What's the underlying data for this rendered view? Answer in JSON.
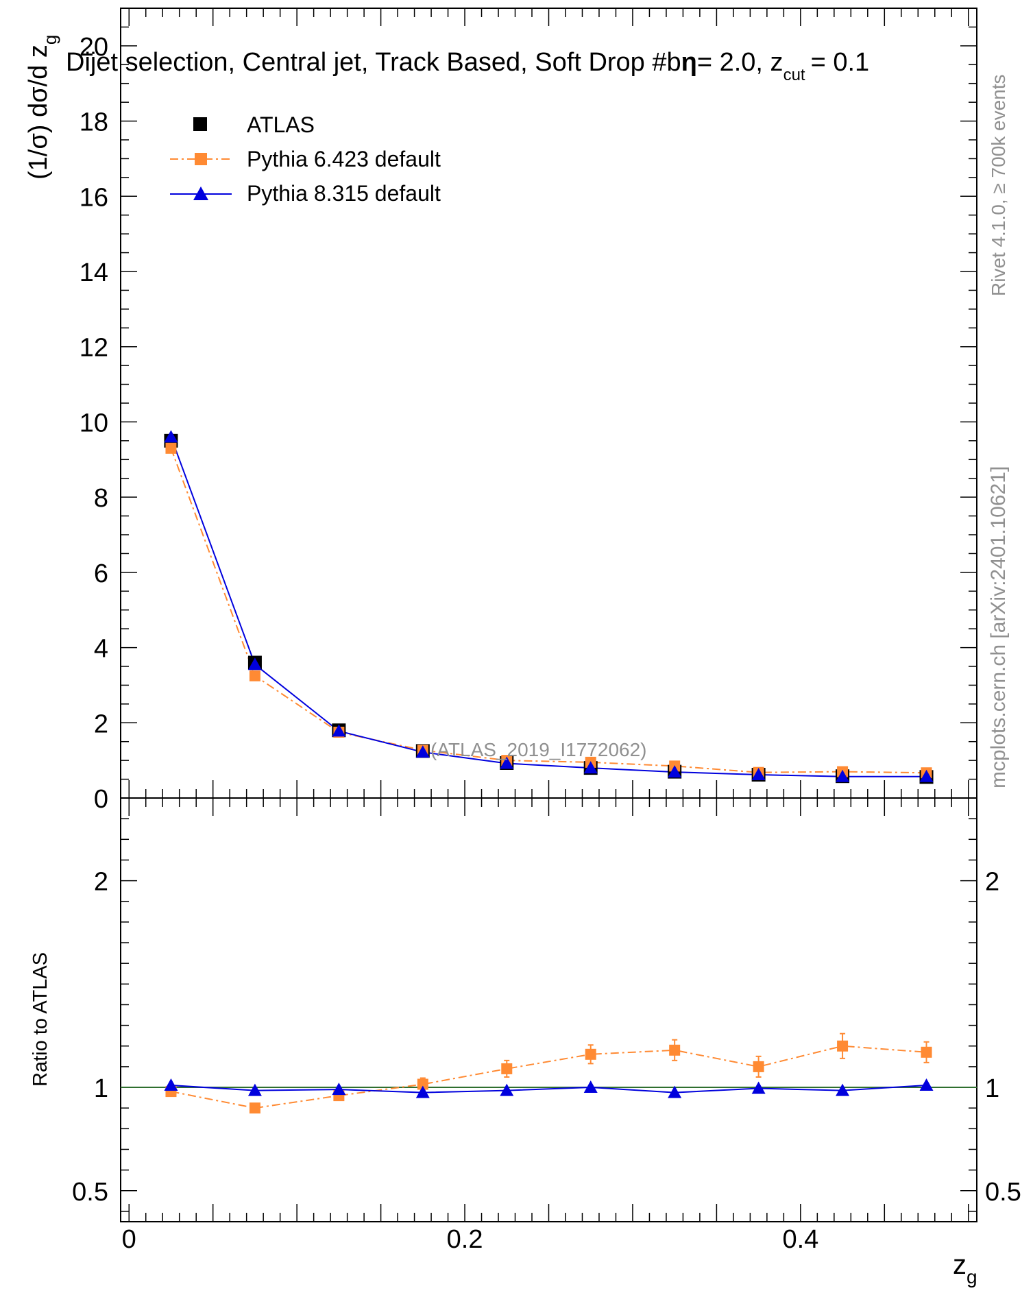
{
  "chart_data": [
    {
      "type": "line",
      "title": "Dijet selection, Central jet, Track Based, Soft Drop #b",
      "title_suffix": "= 2.0, z",
      "title_sub": "cut",
      "title_end": "= 0.1",
      "title_glyph": "η",
      "ylabel": "(1/σ) dσ/d z",
      "ylabel_sub": "g",
      "xlim": [
        -0.005,
        0.505
      ],
      "ylim": [
        0,
        21
      ],
      "yticks": [
        "0",
        "2",
        "4",
        "6",
        "8",
        "10",
        "12",
        "14",
        "16",
        "18",
        "20"
      ],
      "analysis_label": "(ATLAS_2019_I1772062)",
      "x": [
        0.025,
        0.075,
        0.125,
        0.175,
        0.225,
        0.275,
        0.325,
        0.375,
        0.425,
        0.475
      ],
      "series": [
        {
          "name": "ATLAS",
          "color": "#000000",
          "marker": "square",
          "values": [
            9.5,
            3.6,
            1.8,
            1.25,
            0.93,
            0.8,
            0.7,
            0.62,
            0.58,
            0.56
          ]
        },
        {
          "name": "Pythia 6.423 default",
          "color": "#ff8a33",
          "marker": "square",
          "line": "dashdot",
          "values": [
            9.3,
            3.25,
            1.75,
            1.27,
            1.0,
            0.95,
            0.85,
            0.68,
            0.7,
            0.67
          ]
        },
        {
          "name": "Pythia 8.315 default",
          "color": "#0000dd",
          "marker": "triangle",
          "line": "solid",
          "values": [
            9.6,
            3.55,
            1.78,
            1.22,
            0.92,
            0.8,
            0.69,
            0.62,
            0.57,
            0.57
          ]
        }
      ],
      "legend": "top-left"
    },
    {
      "type": "line",
      "xlabel": "z",
      "xlabel_sub": "g",
      "ylabel": "Ratio to ATLAS",
      "ylim": [
        0.35,
        2.4
      ],
      "xticks": [
        "0",
        "0.2",
        "0.4"
      ],
      "yticks": [
        "0.5",
        "1",
        "2"
      ],
      "x": [
        0.025,
        0.075,
        0.125,
        0.175,
        0.225,
        0.275,
        0.325,
        0.375,
        0.425,
        0.475
      ],
      "series": [
        {
          "name": "Pythia 6.423 default",
          "color": "#ff8a33",
          "values": [
            0.98,
            0.9,
            0.96,
            1.015,
            1.09,
            1.16,
            1.18,
            1.1,
            1.2,
            1.17
          ],
          "errors": [
            0.015,
            0.015,
            0.02,
            0.03,
            0.04,
            0.045,
            0.05,
            0.05,
            0.06,
            0.05
          ]
        },
        {
          "name": "Pythia 8.315 default",
          "color": "#0000dd",
          "values": [
            1.01,
            0.985,
            0.99,
            0.975,
            0.985,
            1.0,
            0.975,
            0.995,
            0.985,
            1.01
          ]
        }
      ]
    }
  ],
  "side_labels": {
    "rivet": "Rivet 4.1.0, ≥ 700k events",
    "mcplots": "mcplots.cern.ch [arXiv:2401.10621]"
  }
}
